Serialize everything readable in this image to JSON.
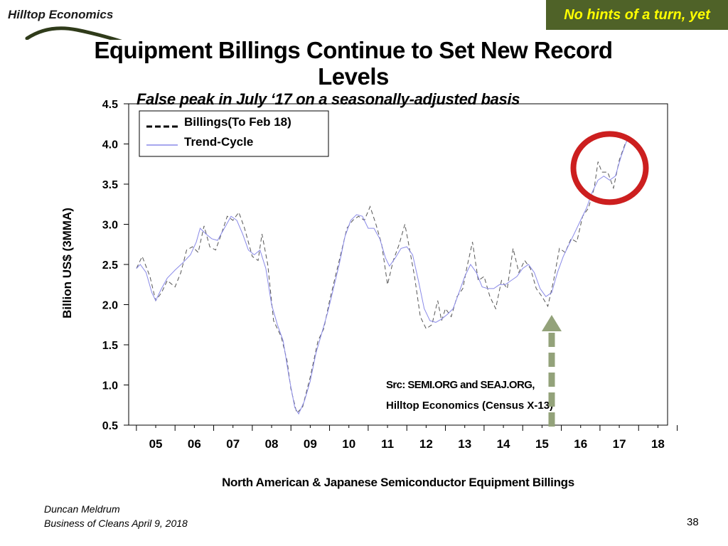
{
  "header": {
    "logo_text": "Hilltop Economics",
    "badge": "No hints of a turn, yet"
  },
  "title": "Equipment Billings Continue to Set New Record Levels",
  "subtitle": "False peak in July ‘17 on a seasonally-adjusted basis",
  "footer": {
    "author": "Duncan Meldrum",
    "event": "Business of Cleans April 9, 2018",
    "page": "38"
  },
  "colors": {
    "badge_bg": "#4f6228",
    "badge_text": "#ffff00",
    "billings": "#555555",
    "trend": "#8a8ae8",
    "circle": "#cc1f1f",
    "arrow": "#93a27a"
  },
  "chart_data": {
    "type": "line",
    "title": "North American & Japanese Semiconductor Equipment Billings",
    "ylabel": "Billion US$ (3MMA)",
    "xlabel": "",
    "ylim": [
      0.5,
      4.5
    ],
    "yticks": [
      "0.5",
      "1.0",
      "1.5",
      "2.0",
      "2.5",
      "3.0",
      "3.5",
      "4.0",
      "4.5"
    ],
    "categories": [
      "05",
      "06",
      "07",
      "08",
      "09",
      "10",
      "11",
      "12",
      "13",
      "14",
      "15",
      "16",
      "17",
      "18"
    ],
    "legend_position": "top-left",
    "grid": false,
    "annotations": {
      "source_line1": "Src: SEMI.ORG and SEAJ.ORG,",
      "source_line2": "Hilltop Economics (Census X-13)",
      "arrow_at_year": 2015.75,
      "circle_center": [
        2017.25,
        3.7
      ]
    },
    "series": [
      {
        "name": "Billings(To Feb 18)",
        "style": "dashed",
        "points": [
          [
            2005.0,
            2.45
          ],
          [
            2005.15,
            2.6
          ],
          [
            2005.35,
            2.35
          ],
          [
            2005.5,
            2.05
          ],
          [
            2005.65,
            2.15
          ],
          [
            2005.8,
            2.3
          ],
          [
            2006.0,
            2.22
          ],
          [
            2006.15,
            2.4
          ],
          [
            2006.3,
            2.68
          ],
          [
            2006.45,
            2.72
          ],
          [
            2006.6,
            2.65
          ],
          [
            2006.75,
            2.98
          ],
          [
            2006.9,
            2.72
          ],
          [
            2007.05,
            2.68
          ],
          [
            2007.2,
            2.88
          ],
          [
            2007.35,
            3.1
          ],
          [
            2007.5,
            3.05
          ],
          [
            2007.65,
            3.15
          ],
          [
            2007.8,
            2.95
          ],
          [
            2008.0,
            2.6
          ],
          [
            2008.15,
            2.55
          ],
          [
            2008.25,
            2.88
          ],
          [
            2008.4,
            2.5
          ],
          [
            2008.55,
            1.8
          ],
          [
            2008.75,
            1.6
          ],
          [
            2008.9,
            1.3
          ],
          [
            2009.0,
            0.95
          ],
          [
            2009.15,
            0.65
          ],
          [
            2009.3,
            0.72
          ],
          [
            2009.5,
            1.1
          ],
          [
            2009.7,
            1.55
          ],
          [
            2009.85,
            1.7
          ],
          [
            2010.0,
            2.05
          ],
          [
            2010.15,
            2.35
          ],
          [
            2010.3,
            2.65
          ],
          [
            2010.45,
            2.95
          ],
          [
            2010.6,
            3.05
          ],
          [
            2010.75,
            3.1
          ],
          [
            2010.9,
            3.05
          ],
          [
            2011.05,
            3.22
          ],
          [
            2011.2,
            3.0
          ],
          [
            2011.35,
            2.75
          ],
          [
            2011.5,
            2.25
          ],
          [
            2011.65,
            2.55
          ],
          [
            2011.8,
            2.75
          ],
          [
            2011.95,
            3.0
          ],
          [
            2012.05,
            2.75
          ],
          [
            2012.2,
            2.35
          ],
          [
            2012.35,
            1.85
          ],
          [
            2012.5,
            1.7
          ],
          [
            2012.65,
            1.75
          ],
          [
            2012.8,
            2.05
          ],
          [
            2012.9,
            1.8
          ],
          [
            2013.0,
            1.95
          ],
          [
            2013.15,
            1.85
          ],
          [
            2013.3,
            2.1
          ],
          [
            2013.45,
            2.2
          ],
          [
            2013.55,
            2.45
          ],
          [
            2013.7,
            2.78
          ],
          [
            2013.85,
            2.3
          ],
          [
            2014.0,
            2.35
          ],
          [
            2014.15,
            2.1
          ],
          [
            2014.3,
            1.95
          ],
          [
            2014.45,
            2.3
          ],
          [
            2014.6,
            2.2
          ],
          [
            2014.75,
            2.7
          ],
          [
            2014.9,
            2.4
          ],
          [
            2015.05,
            2.55
          ],
          [
            2015.2,
            2.45
          ],
          [
            2015.35,
            2.2
          ],
          [
            2015.5,
            2.1
          ],
          [
            2015.65,
            1.98
          ],
          [
            2015.8,
            2.3
          ],
          [
            2015.95,
            2.7
          ],
          [
            2016.1,
            2.65
          ],
          [
            2016.25,
            2.82
          ],
          [
            2016.4,
            2.78
          ],
          [
            2016.55,
            3.1
          ],
          [
            2016.7,
            3.2
          ],
          [
            2016.85,
            3.45
          ],
          [
            2016.95,
            3.78
          ],
          [
            2017.05,
            3.65
          ],
          [
            2017.2,
            3.65
          ],
          [
            2017.35,
            3.45
          ],
          [
            2017.5,
            3.8
          ],
          [
            2017.65,
            4.0
          ],
          [
            2017.75,
            4.08
          ]
        ]
      },
      {
        "name": "Trend-Cycle",
        "style": "solid",
        "points": [
          [
            2005.0,
            2.45
          ],
          [
            2005.1,
            2.5
          ],
          [
            2005.25,
            2.4
          ],
          [
            2005.4,
            2.15
          ],
          [
            2005.5,
            2.05
          ],
          [
            2005.65,
            2.2
          ],
          [
            2005.8,
            2.33
          ],
          [
            2006.0,
            2.43
          ],
          [
            2006.2,
            2.52
          ],
          [
            2006.4,
            2.62
          ],
          [
            2006.55,
            2.78
          ],
          [
            2006.65,
            2.95
          ],
          [
            2006.8,
            2.88
          ],
          [
            2006.95,
            2.82
          ],
          [
            2007.1,
            2.8
          ],
          [
            2007.3,
            2.97
          ],
          [
            2007.45,
            3.1
          ],
          [
            2007.6,
            3.05
          ],
          [
            2007.75,
            2.88
          ],
          [
            2007.9,
            2.68
          ],
          [
            2008.05,
            2.62
          ],
          [
            2008.2,
            2.68
          ],
          [
            2008.35,
            2.45
          ],
          [
            2008.5,
            2.0
          ],
          [
            2008.65,
            1.75
          ],
          [
            2008.8,
            1.55
          ],
          [
            2008.95,
            1.1
          ],
          [
            2009.1,
            0.72
          ],
          [
            2009.2,
            0.64
          ],
          [
            2009.35,
            0.8
          ],
          [
            2009.5,
            1.05
          ],
          [
            2009.65,
            1.4
          ],
          [
            2009.8,
            1.65
          ],
          [
            2009.95,
            1.9
          ],
          [
            2010.1,
            2.2
          ],
          [
            2010.25,
            2.5
          ],
          [
            2010.4,
            2.85
          ],
          [
            2010.55,
            3.05
          ],
          [
            2010.7,
            3.12
          ],
          [
            2010.85,
            3.1
          ],
          [
            2011.0,
            2.95
          ],
          [
            2011.15,
            2.95
          ],
          [
            2011.3,
            2.82
          ],
          [
            2011.45,
            2.58
          ],
          [
            2011.55,
            2.48
          ],
          [
            2011.7,
            2.58
          ],
          [
            2011.85,
            2.7
          ],
          [
            2012.0,
            2.72
          ],
          [
            2012.15,
            2.62
          ],
          [
            2012.3,
            2.3
          ],
          [
            2012.45,
            1.95
          ],
          [
            2012.6,
            1.8
          ],
          [
            2012.75,
            1.78
          ],
          [
            2012.9,
            1.82
          ],
          [
            2013.05,
            1.88
          ],
          [
            2013.2,
            1.95
          ],
          [
            2013.35,
            2.15
          ],
          [
            2013.5,
            2.35
          ],
          [
            2013.65,
            2.5
          ],
          [
            2013.8,
            2.4
          ],
          [
            2013.95,
            2.22
          ],
          [
            2014.1,
            2.2
          ],
          [
            2014.25,
            2.2
          ],
          [
            2014.4,
            2.25
          ],
          [
            2014.55,
            2.25
          ],
          [
            2014.7,
            2.3
          ],
          [
            2014.85,
            2.35
          ],
          [
            2015.0,
            2.45
          ],
          [
            2015.15,
            2.5
          ],
          [
            2015.3,
            2.4
          ],
          [
            2015.45,
            2.2
          ],
          [
            2015.6,
            2.1
          ],
          [
            2015.75,
            2.15
          ],
          [
            2015.9,
            2.4
          ],
          [
            2016.05,
            2.6
          ],
          [
            2016.2,
            2.75
          ],
          [
            2016.35,
            2.9
          ],
          [
            2016.5,
            3.05
          ],
          [
            2016.65,
            3.2
          ],
          [
            2016.8,
            3.4
          ],
          [
            2016.95,
            3.55
          ],
          [
            2017.1,
            3.6
          ],
          [
            2017.25,
            3.55
          ],
          [
            2017.4,
            3.6
          ],
          [
            2017.55,
            3.85
          ],
          [
            2017.7,
            4.05
          ],
          [
            2017.75,
            4.1
          ]
        ]
      }
    ]
  }
}
